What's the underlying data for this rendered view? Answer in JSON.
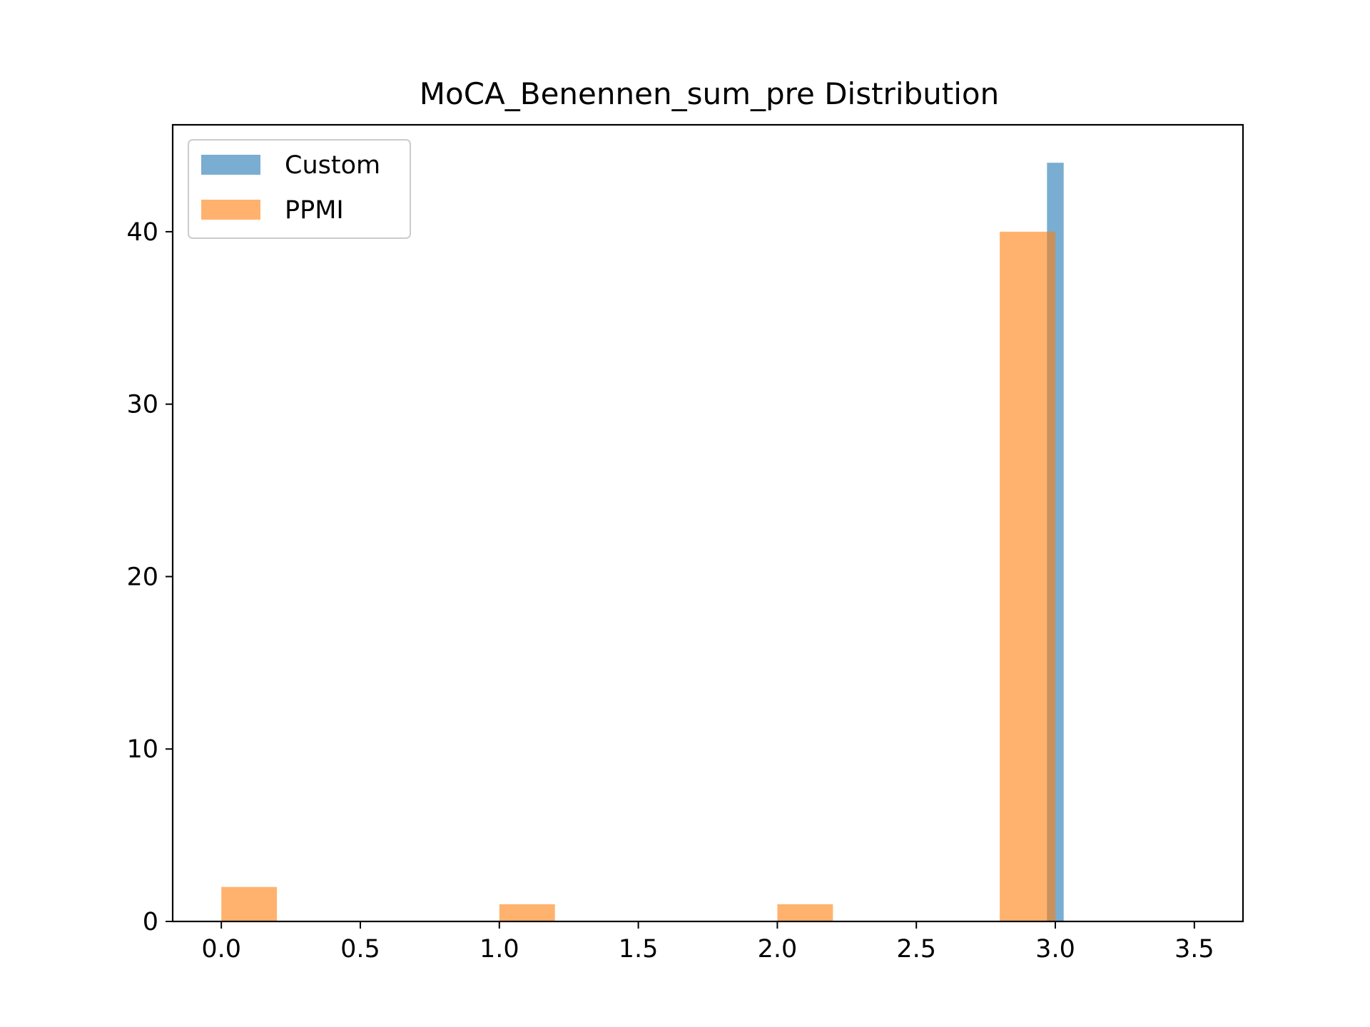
{
  "chart_data": {
    "type": "bar",
    "title": "MoCA_Benennen_sum_pre Distribution",
    "xlabel": "",
    "ylabel": "",
    "xlim": [
      -0.175,
      3.675
    ],
    "ylim": [
      0,
      46.2
    ],
    "x_ticks": [
      0.0,
      0.5,
      1.0,
      1.5,
      2.0,
      2.5,
      3.0,
      3.5
    ],
    "x_tick_labels": [
      "0.0",
      "0.5",
      "1.0",
      "1.5",
      "2.0",
      "2.5",
      "3.0",
      "3.5"
    ],
    "y_ticks": [
      0,
      10,
      20,
      30,
      40
    ],
    "y_tick_labels": [
      "0",
      "10",
      "20",
      "30",
      "40"
    ],
    "grid": false,
    "legend_position": "top-left",
    "series": [
      {
        "name": "Custom",
        "color": "#1f77b4",
        "opacity": 0.6,
        "bins": [
          {
            "start": 2.97,
            "end": 3.03,
            "count": 44
          }
        ]
      },
      {
        "name": "PPMI",
        "color": "#ff7f0e",
        "opacity": 0.6,
        "bins": [
          {
            "start": 0.0,
            "end": 0.2,
            "count": 2
          },
          {
            "start": 1.0,
            "end": 1.2,
            "count": 1
          },
          {
            "start": 2.0,
            "end": 2.2,
            "count": 1
          },
          {
            "start": 2.8,
            "end": 3.0,
            "count": 40
          }
        ]
      }
    ]
  }
}
